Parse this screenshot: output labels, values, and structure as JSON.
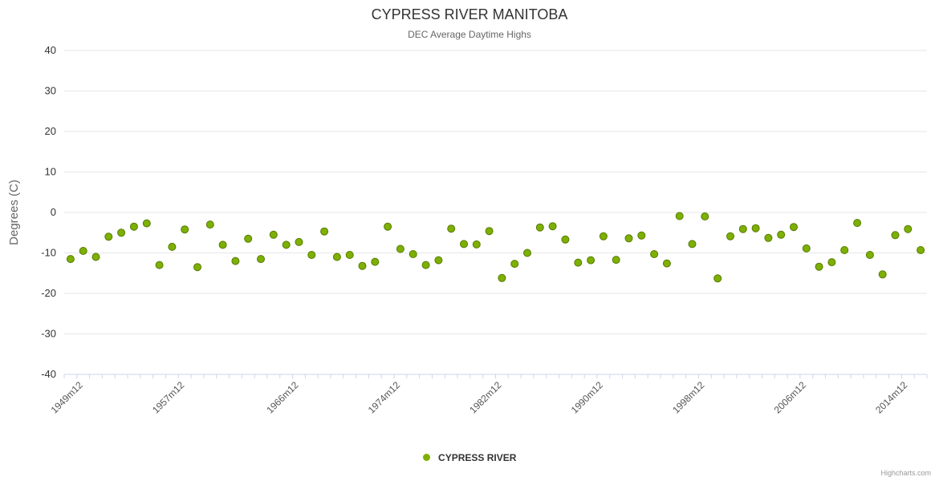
{
  "title": "CYPRESS RIVER MANITOBA",
  "subtitle": "DEC Average Daytime Highs",
  "y_axis_title": "Degrees (C)",
  "legend": {
    "label": "CYPRESS RIVER"
  },
  "credit": "Highcharts.com",
  "colors": {
    "point": "#7db000",
    "point_stroke": "#567a00",
    "grid": "#e6e6e6",
    "axis_line": "#ccd6eb",
    "tick": "#ccd6eb",
    "label_text": "#333333",
    "muted_text": "#666666"
  },
  "chart_data": {
    "type": "scatter",
    "title": "CYPRESS RIVER MANITOBA",
    "subtitle": "DEC Average Daytime Highs",
    "ylabel": "Degrees (C)",
    "ylim": [
      -40,
      40
    ],
    "y_ticks": [
      -40,
      -30,
      -20,
      -10,
      0,
      10,
      20,
      30,
      40
    ],
    "x_start_year": 1948,
    "x_suffix": "m12",
    "x_tick_label_years": [
      1949,
      1957,
      1966,
      1974,
      1982,
      1990,
      1998,
      2006,
      2014
    ],
    "x_tick_labels": [
      "1949m12",
      "1957m12",
      "1966m12",
      "1974m12",
      "1982m12",
      "1990m12",
      "1998m12",
      "2006m12",
      "2014m12"
    ],
    "legend_position": "bottom",
    "grid": true,
    "series": [
      {
        "name": "CYPRESS RIVER",
        "values": [
          -11.5,
          -9.5,
          -11,
          -6,
          -5,
          -3.5,
          -2.7,
          -13,
          -8.5,
          -4.2,
          -13.5,
          -3,
          -8,
          -12,
          -6.5,
          -11.5,
          -5.5,
          -8,
          -7.3,
          -10.5,
          -4.7,
          -11,
          -10.5,
          -13.2,
          -12.2,
          -3.5,
          -9,
          -10.3,
          -13,
          -11.8,
          -4,
          -7.8,
          -7.9,
          -4.6,
          -16.2,
          -12.7,
          -10,
          -3.7,
          -3.4,
          -6.7,
          -12.4,
          -11.8,
          -5.9,
          -11.7,
          -6.4,
          -5.7,
          -10.3,
          -12.6,
          -0.9,
          -7.8,
          -1,
          -16.3,
          -5.9,
          -4.1,
          -3.9,
          -6.3,
          -5.5,
          -3.6,
          -8.9,
          -13.4,
          -12.3,
          -9.3,
          -2.6,
          -10.5,
          -15.3,
          -5.6,
          -4.1,
          -9.3
        ]
      }
    ]
  }
}
